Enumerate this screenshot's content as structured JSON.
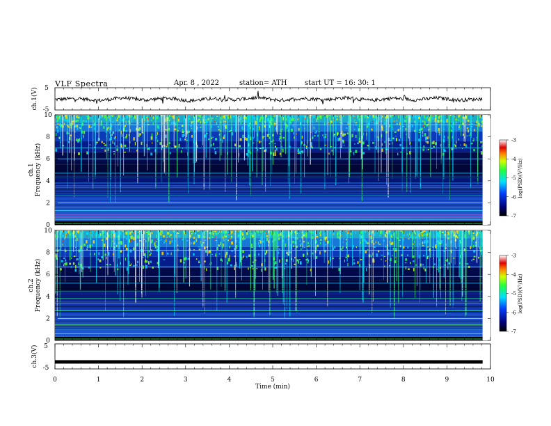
{
  "header": {
    "title": "VLF  Spectra",
    "date": "Apr. 8  , 2022",
    "station": "station= ATH",
    "start": "start  UT  =   16: 30: 1"
  },
  "chart_data": [
    {
      "type": "line",
      "ylabel": "ch.1(V)",
      "ylim": [
        -5,
        5
      ],
      "y_ticks": [
        "5",
        "-5"
      ],
      "xlim": [
        0,
        10
      ],
      "description_series": [
        {
          "values_sampled": [
            -0.5,
            0.3,
            -1.2,
            0.8,
            -0.9,
            0.6,
            -1.5,
            0.2,
            -0.7,
            1.0,
            -1.1,
            0.4,
            -0.6,
            0.9,
            -1.3,
            0.5,
            -0.8,
            0.7,
            -1.0,
            0.1
          ]
        }
      ],
      "color": "#000000"
    },
    {
      "type": "heatmap",
      "channel_label": "ch.1",
      "ylabel": "Frequency  (kHz)",
      "ylim": [
        0,
        10
      ],
      "y_ticks": [
        "0",
        "2",
        "4",
        "6",
        "8",
        "10"
      ],
      "xlim": [
        0,
        10
      ],
      "colorbar": {
        "label": "log(PSD)(V²/Hz)",
        "ticks": [
          "-3",
          "-4",
          "-5",
          "-6",
          "-7"
        ],
        "range": [
          -7,
          -3
        ]
      }
    },
    {
      "type": "heatmap",
      "channel_label": "ch.2",
      "ylabel": "Frequency  (kHz)",
      "ylim": [
        0,
        10
      ],
      "y_ticks": [
        "0",
        "2",
        "4",
        "6",
        "8",
        "10"
      ],
      "xlim": [
        0,
        10
      ],
      "colorbar": {
        "label": "log(PSD)(V²/Hz)",
        "ticks": [
          "-3",
          "-4",
          "-5",
          "-6",
          "-7"
        ],
        "range": [
          -7,
          -3
        ]
      }
    },
    {
      "type": "line",
      "ylabel": "ch.3(V)",
      "ylim": [
        -5,
        5
      ],
      "y_ticks": [
        "5",
        "-5"
      ],
      "xlim": [
        0,
        10
      ],
      "constant_value": -2.2,
      "color": "#000000"
    }
  ],
  "x_axis": {
    "label": "Time  (min)",
    "ticks": [
      "0",
      "1",
      "2",
      "3",
      "4",
      "5",
      "6",
      "7",
      "8",
      "9",
      "10"
    ],
    "range": [
      0,
      10
    ],
    "data_end": 9.82
  }
}
